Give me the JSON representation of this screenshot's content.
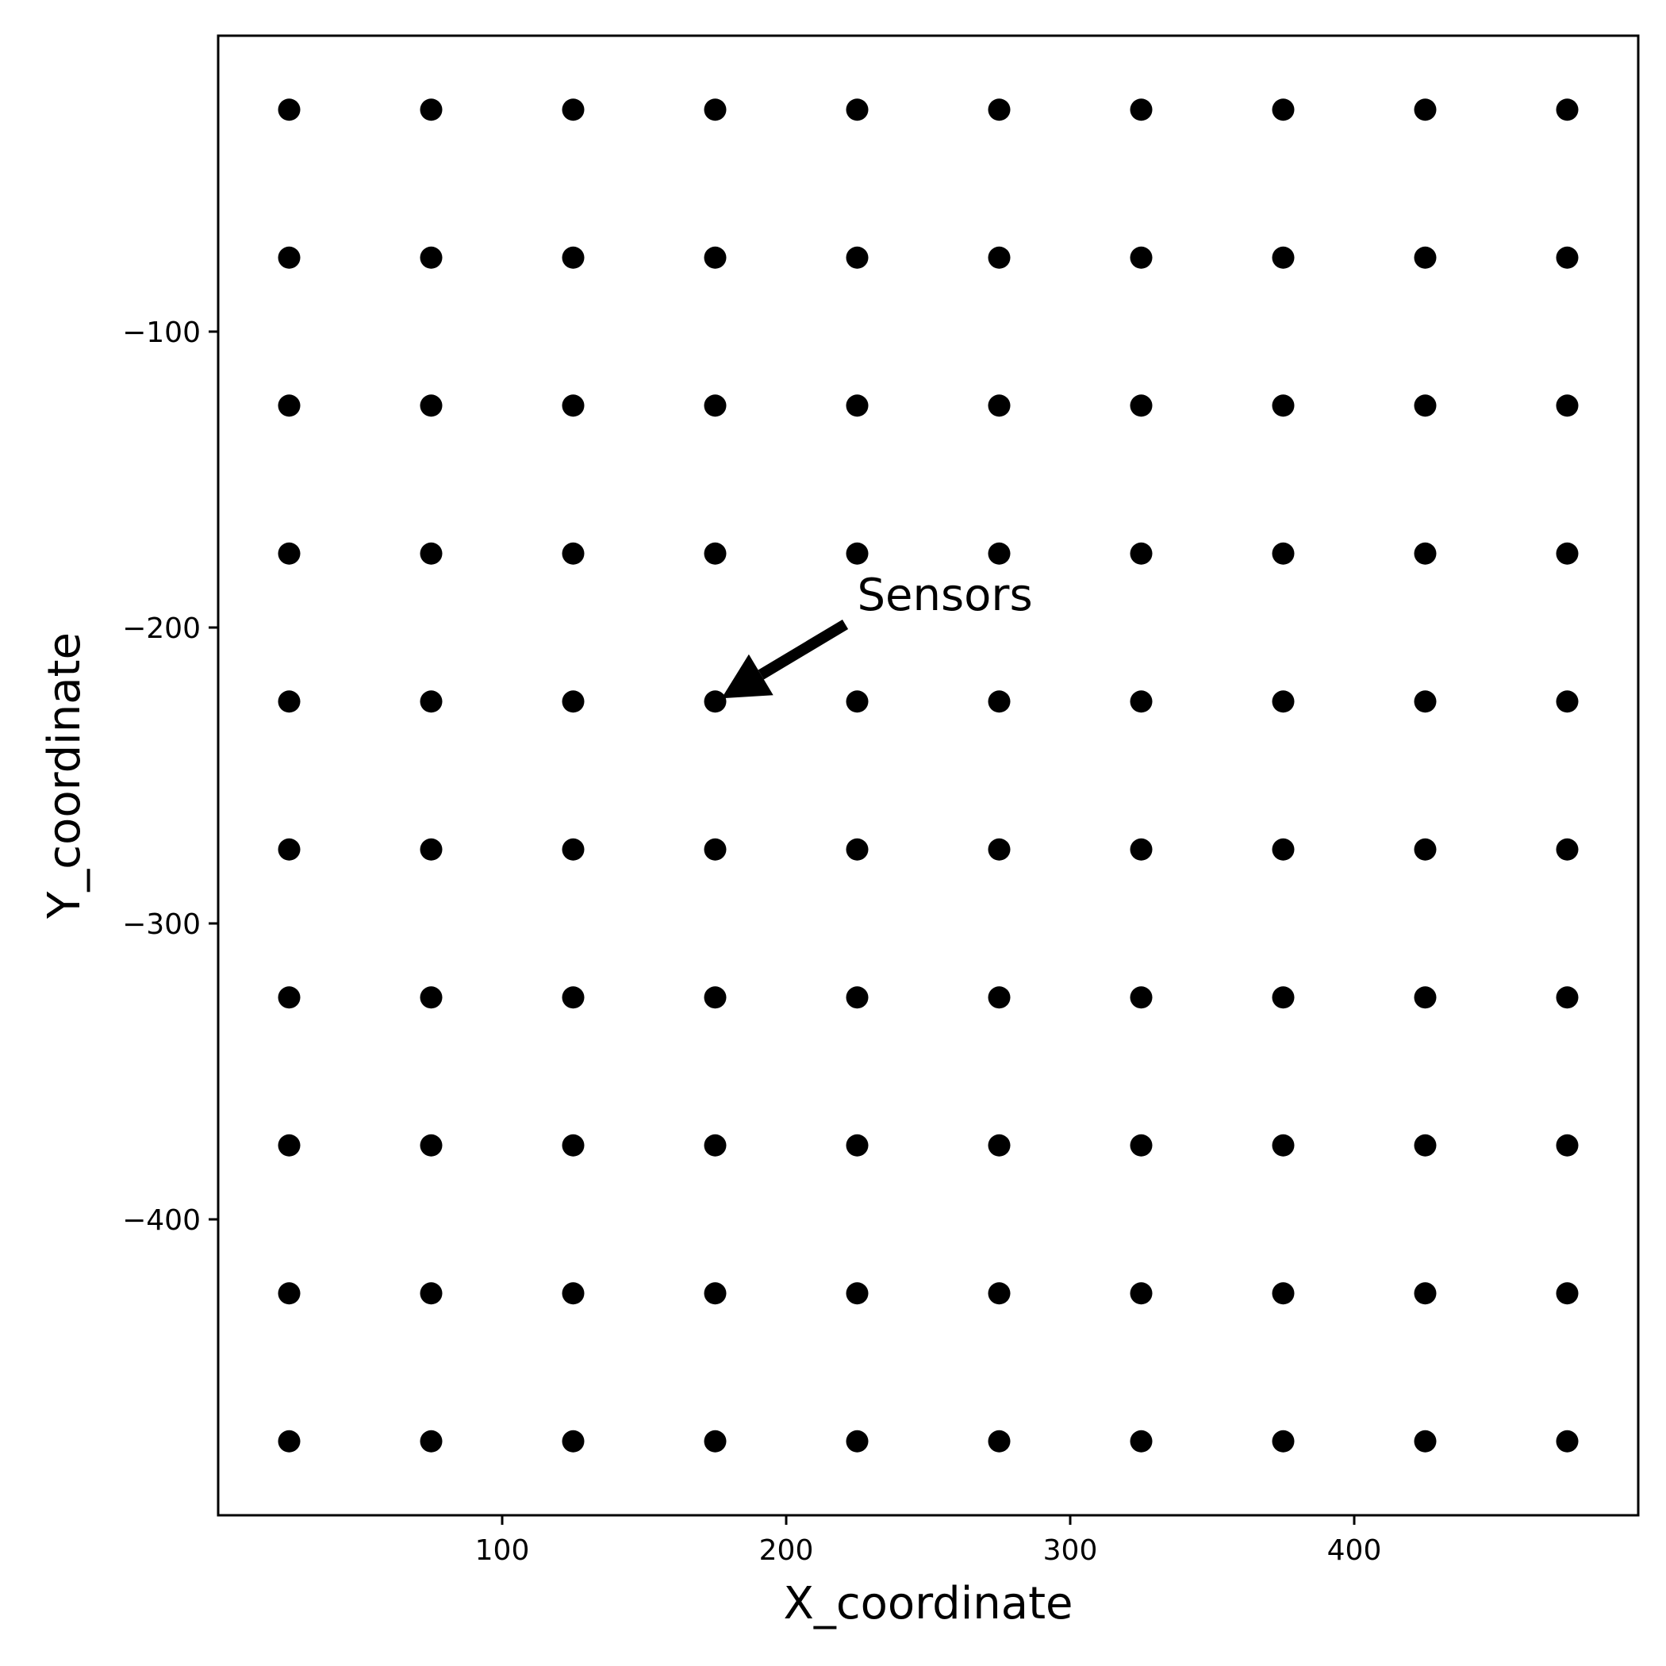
{
  "chart_data": {
    "type": "scatter",
    "title": "",
    "xlabel": "X_coordinate",
    "ylabel": "Y_coordinate",
    "xlim": [
      0,
      500
    ],
    "ylim": [
      -500,
      0
    ],
    "grid": false,
    "x_ticks": [
      100,
      200,
      300,
      400
    ],
    "x_tick_labels": [
      "100",
      "200",
      "300",
      "400"
    ],
    "y_ticks": [
      -100,
      -200,
      -300,
      -400
    ],
    "y_tick_labels": [
      "−100",
      "−200",
      "−300",
      "−400"
    ],
    "series": [
      {
        "marker_color": "#000000",
        "x": [
          25,
          75,
          125,
          175,
          225,
          275,
          325,
          375,
          425,
          475
        ],
        "y": [
          -25,
          -75,
          -125,
          -175,
          -225,
          -275,
          -325,
          -375,
          -425,
          -475
        ]
      }
    ],
    "annotations": [
      {
        "text": "Sensors",
        "point": [
          175,
          -225
        ],
        "text_anchor_point": [
          225,
          -200
        ]
      }
    ]
  }
}
